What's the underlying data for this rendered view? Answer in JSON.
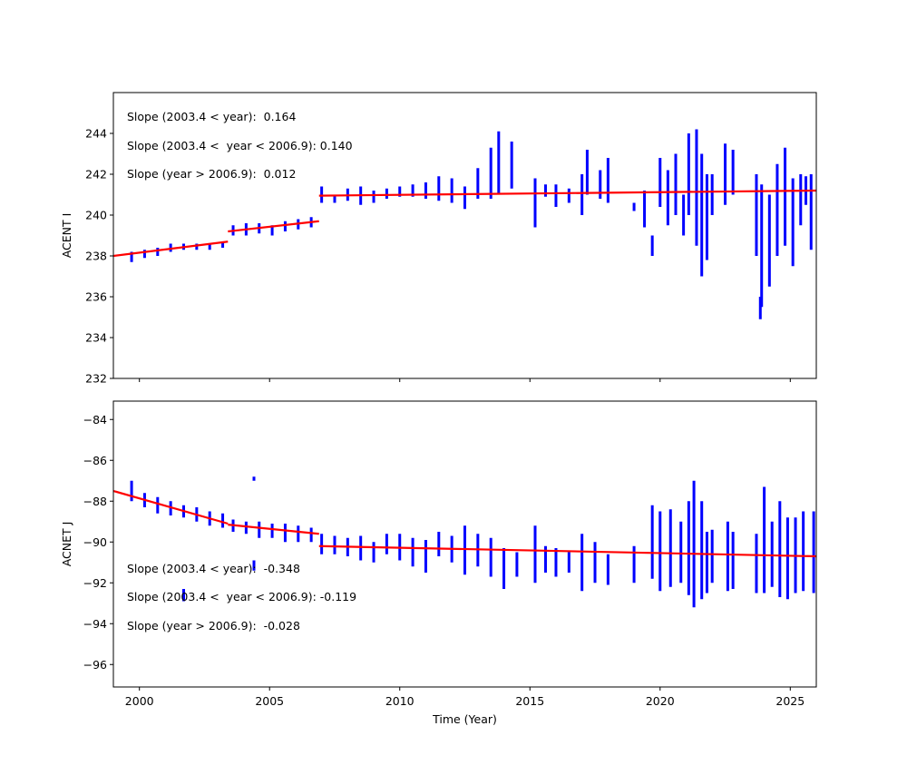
{
  "chart_data": [
    {
      "type": "scatter",
      "ylabel": "ACENT I",
      "xlabel": "",
      "xlim": [
        1999.0,
        2026.0
      ],
      "ylim": [
        232,
        246
      ],
      "yticks": [
        232,
        234,
        236,
        238,
        240,
        242,
        244
      ],
      "xticks": [
        2000,
        2005,
        2010,
        2015,
        2020,
        2025
      ],
      "show_xtick_labels": false,
      "point_color": "#0000ff",
      "fit_color": "#ff0000",
      "annotations": [
        "Slope (2003.4 < year):  0.164",
        "Slope (2003.4 <  year < 2006.9): 0.140",
        "Slope (year > 2006.9):  0.012"
      ],
      "fit_segments": [
        [
          [
            1999.0,
            238.0
          ],
          [
            2003.4,
            238.7
          ]
        ],
        [
          [
            2003.4,
            239.2
          ],
          [
            2006.9,
            239.7
          ]
        ],
        [
          [
            2006.9,
            240.95
          ],
          [
            2026.0,
            241.2
          ]
        ]
      ],
      "data_ranges_year_low_high": [
        [
          1999.7,
          237.7,
          238.2
        ],
        [
          2000.2,
          237.9,
          238.3
        ],
        [
          2000.7,
          238.0,
          238.4
        ],
        [
          2001.2,
          238.2,
          238.6
        ],
        [
          2001.7,
          238.3,
          238.6
        ],
        [
          2002.2,
          238.3,
          238.6
        ],
        [
          2002.7,
          238.3,
          238.6
        ],
        [
          2003.2,
          238.4,
          238.7
        ],
        [
          2003.6,
          239.0,
          239.5
        ],
        [
          2004.1,
          239.0,
          239.6
        ],
        [
          2004.6,
          239.1,
          239.6
        ],
        [
          2005.1,
          239.0,
          239.5
        ],
        [
          2005.6,
          239.2,
          239.7
        ],
        [
          2006.1,
          239.3,
          239.8
        ],
        [
          2006.6,
          239.4,
          239.9
        ],
        [
          2007.0,
          240.6,
          241.4
        ],
        [
          2007.5,
          240.6,
          241.0
        ],
        [
          2008.0,
          240.7,
          241.3
        ],
        [
          2008.5,
          240.5,
          241.4
        ],
        [
          2009.0,
          240.6,
          241.2
        ],
        [
          2009.5,
          240.8,
          241.3
        ],
        [
          2010.0,
          240.9,
          241.4
        ],
        [
          2010.5,
          240.9,
          241.5
        ],
        [
          2011.0,
          240.8,
          241.6
        ],
        [
          2011.5,
          240.7,
          241.9
        ],
        [
          2012.0,
          240.6,
          241.8
        ],
        [
          2012.5,
          240.3,
          241.4
        ],
        [
          2013.0,
          240.8,
          242.3
        ],
        [
          2013.5,
          240.8,
          243.3
        ],
        [
          2013.8,
          241.0,
          244.1
        ],
        [
          2014.3,
          241.3,
          243.6
        ],
        [
          2015.2,
          239.4,
          241.8
        ],
        [
          2015.6,
          240.9,
          241.5
        ],
        [
          2016.0,
          240.4,
          241.5
        ],
        [
          2016.5,
          240.6,
          241.3
        ],
        [
          2017.0,
          240.0,
          242.0
        ],
        [
          2017.2,
          241.0,
          243.2
        ],
        [
          2017.7,
          240.8,
          242.2
        ],
        [
          2018.0,
          240.6,
          242.8
        ],
        [
          2019.0,
          240.2,
          240.6
        ],
        [
          2019.4,
          239.4,
          241.2
        ],
        [
          2019.7,
          238.0,
          239.0
        ],
        [
          2020.0,
          240.4,
          242.8
        ],
        [
          2020.3,
          239.5,
          242.2
        ],
        [
          2020.6,
          240.0,
          243.0
        ],
        [
          2020.9,
          239.0,
          241.0
        ],
        [
          2021.1,
          240.0,
          244.0
        ],
        [
          2021.4,
          238.5,
          244.2
        ],
        [
          2021.6,
          237.0,
          243.0
        ],
        [
          2021.8,
          237.8,
          242.0
        ],
        [
          2022.0,
          240.0,
          242.0
        ],
        [
          2022.5,
          240.5,
          243.5
        ],
        [
          2022.8,
          241.0,
          243.2
        ],
        [
          2023.7,
          238.0,
          242.0
        ],
        [
          2023.85,
          234.9,
          236.0
        ],
        [
          2023.9,
          235.5,
          241.5
        ],
        [
          2024.2,
          236.5,
          241.0
        ],
        [
          2024.5,
          238.0,
          242.5
        ],
        [
          2024.8,
          238.5,
          243.3
        ],
        [
          2025.1,
          237.5,
          241.8
        ],
        [
          2025.4,
          239.5,
          242.0
        ],
        [
          2025.6,
          240.5,
          241.9
        ],
        [
          2025.8,
          238.3,
          242.0
        ]
      ]
    },
    {
      "type": "scatter",
      "ylabel": "ACNET J",
      "xlabel": "Time (Year)",
      "xlim": [
        1999.0,
        2026.0
      ],
      "ylim": [
        -97.1,
        -83.1
      ],
      "yticks": [
        -96,
        -94,
        -92,
        -90,
        -88,
        -86,
        -84
      ],
      "xticks": [
        2000,
        2005,
        2010,
        2015,
        2020,
        2025
      ],
      "show_xtick_labels": true,
      "point_color": "#0000ff",
      "fit_color": "#ff0000",
      "annotations": [
        "Slope (2003.4 < year):  -0.348",
        "Slope (2003.4 <  year < 2006.9): -0.119",
        "Slope (year > 2006.9):  -0.028"
      ],
      "fit_segments": [
        [
          [
            1999.0,
            -87.5
          ],
          [
            2003.4,
            -89.1
          ]
        ],
        [
          [
            2003.4,
            -89.15
          ],
          [
            2006.9,
            -89.6
          ]
        ],
        [
          [
            2006.9,
            -90.2
          ],
          [
            2026.0,
            -90.7
          ]
        ]
      ],
      "data_ranges_year_low_high": [
        [
          1999.7,
          -88.0,
          -87.0
        ],
        [
          2000.2,
          -88.3,
          -87.6
        ],
        [
          2000.7,
          -88.6,
          -87.8
        ],
        [
          2001.2,
          -88.7,
          -88.0
        ],
        [
          2001.7,
          -88.8,
          -88.2
        ],
        [
          2001.7,
          -92.9,
          -92.3
        ],
        [
          2002.2,
          -89.0,
          -88.3
        ],
        [
          2002.7,
          -89.2,
          -88.5
        ],
        [
          2003.2,
          -89.3,
          -88.6
        ],
        [
          2003.6,
          -89.5,
          -88.9
        ],
        [
          2004.1,
          -89.6,
          -89.0
        ],
        [
          2004.4,
          -87.0,
          -86.8
        ],
        [
          2004.4,
          -91.4,
          -90.9
        ],
        [
          2004.6,
          -89.8,
          -89.0
        ],
        [
          2005.1,
          -89.8,
          -89.1
        ],
        [
          2005.6,
          -90.0,
          -89.1
        ],
        [
          2006.1,
          -90.0,
          -89.2
        ],
        [
          2006.6,
          -90.0,
          -89.3
        ],
        [
          2007.0,
          -90.6,
          -89.6
        ],
        [
          2007.5,
          -90.6,
          -89.7
        ],
        [
          2008.0,
          -90.7,
          -89.8
        ],
        [
          2008.5,
          -90.9,
          -89.7
        ],
        [
          2009.0,
          -91.0,
          -90.0
        ],
        [
          2009.5,
          -90.6,
          -89.6
        ],
        [
          2010.0,
          -90.9,
          -89.6
        ],
        [
          2010.5,
          -91.2,
          -89.8
        ],
        [
          2011.0,
          -91.5,
          -89.9
        ],
        [
          2011.5,
          -90.7,
          -89.5
        ],
        [
          2012.0,
          -91.0,
          -89.7
        ],
        [
          2012.5,
          -91.6,
          -89.2
        ],
        [
          2013.0,
          -91.2,
          -89.6
        ],
        [
          2013.5,
          -91.7,
          -89.8
        ],
        [
          2014.0,
          -92.3,
          -90.3
        ],
        [
          2014.5,
          -91.7,
          -90.5
        ],
        [
          2015.2,
          -92.0,
          -89.2
        ],
        [
          2015.6,
          -91.5,
          -90.2
        ],
        [
          2016.0,
          -91.7,
          -90.3
        ],
        [
          2016.5,
          -91.5,
          -90.5
        ],
        [
          2017.0,
          -92.4,
          -89.6
        ],
        [
          2017.5,
          -92.0,
          -90.0
        ],
        [
          2018.0,
          -92.1,
          -90.6
        ],
        [
          2019.0,
          -92.0,
          -90.2
        ],
        [
          2019.7,
          -91.8,
          -88.2
        ],
        [
          2020.0,
          -92.4,
          -88.5
        ],
        [
          2020.4,
          -92.2,
          -88.4
        ],
        [
          2020.8,
          -92.0,
          -89.0
        ],
        [
          2021.1,
          -92.6,
          -88.0
        ],
        [
          2021.3,
          -93.2,
          -87.0
        ],
        [
          2021.6,
          -92.8,
          -88.0
        ],
        [
          2021.8,
          -92.5,
          -89.5
        ],
        [
          2022.0,
          -92.0,
          -89.4
        ],
        [
          2022.6,
          -92.4,
          -89.0
        ],
        [
          2022.8,
          -92.3,
          -89.5
        ],
        [
          2023.7,
          -92.5,
          -89.6
        ],
        [
          2024.0,
          -92.5,
          -87.3
        ],
        [
          2024.3,
          -92.2,
          -89.0
        ],
        [
          2024.6,
          -92.7,
          -88.0
        ],
        [
          2024.9,
          -92.8,
          -88.8
        ],
        [
          2025.2,
          -92.5,
          -88.8
        ],
        [
          2025.5,
          -92.4,
          -88.5
        ],
        [
          2025.9,
          -92.5,
          -88.5
        ]
      ]
    }
  ]
}
